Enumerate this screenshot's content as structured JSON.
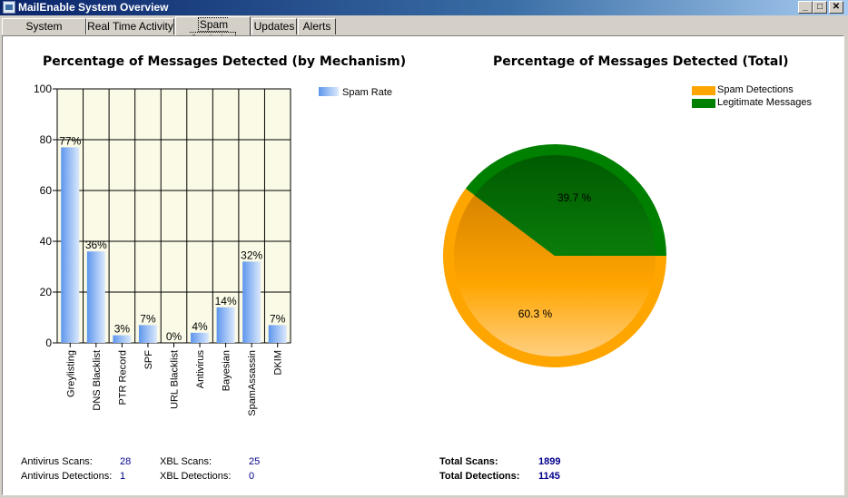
{
  "window": {
    "title": "MailEnable System Overview",
    "min_label": "_",
    "max_label": "□",
    "close_label": "✕"
  },
  "tabs": [
    {
      "label": "System Overview",
      "active": false
    },
    {
      "label": "Real Time Activity",
      "active": false
    },
    {
      "label": "Spam Statistics",
      "active": true
    },
    {
      "label": "Updates",
      "active": false
    },
    {
      "label": "Alerts",
      "active": false
    }
  ],
  "colors": {
    "bar": "#7aa7ee",
    "plot_bg": "#fafae6",
    "spam": "#ffa500",
    "legit": "#008000"
  },
  "chart_data": [
    {
      "type": "bar",
      "title": "Percentage of Messages Detected (by Mechanism)",
      "categories": [
        "Greylisting",
        "DNS Blacklist",
        "PTR Record",
        "SPF",
        "URL Blacklist",
        "Antivirus",
        "Bayesian",
        "SpamAssassin",
        "DKIM"
      ],
      "series": [
        {
          "name": "Spam Rate",
          "values": [
            77,
            36,
            3,
            7,
            0,
            4,
            14,
            32,
            7
          ]
        }
      ],
      "data_labels": [
        "77%",
        "36%",
        "3%",
        "7%",
        "0%",
        "4%",
        "14%",
        "32%",
        "7%"
      ],
      "yticks": [
        "0",
        "20",
        "40",
        "60",
        "80",
        "100"
      ],
      "ylim": [
        0,
        100
      ],
      "grid": true,
      "legend": "right"
    },
    {
      "type": "pie",
      "title": "Percentage of Messages Detected (Total)",
      "labels": [
        "Spam Detections",
        "Legitimate Messages"
      ],
      "values": [
        60.3,
        39.7
      ],
      "data_labels": [
        "60.3 %",
        "39.7 %"
      ],
      "legend": "top-right"
    }
  ],
  "stats": {
    "antivirus_scans_label": "Antivirus Scans:",
    "antivirus_scans_value": "28",
    "antivirus_detections_label": "Antivirus Detections:",
    "antivirus_detections_value": "1",
    "xbl_scans_label": "XBL Scans:",
    "xbl_scans_value": "25",
    "xbl_detections_label": "XBL Detections:",
    "xbl_detections_value": "0",
    "total_scans_label": "Total Scans:",
    "total_scans_value": "1899",
    "total_detections_label": "Total Detections:",
    "total_detections_value": "1145"
  }
}
